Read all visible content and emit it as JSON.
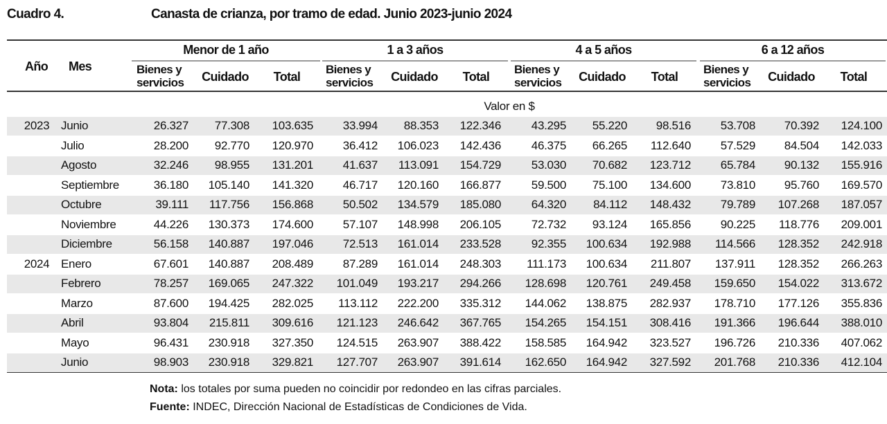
{
  "header": {
    "label": "Cuadro 4.",
    "title": "Canasta de crianza, por tramo de edad. Junio 2023-junio 2024"
  },
  "table": {
    "col_year": "Año",
    "col_month": "Mes",
    "groups": [
      "Menor de 1 año",
      "1 a 3 años",
      "4 a 5 años",
      "6 a 12 años"
    ],
    "subcolumns": [
      "Bienes y servicios",
      "Cuidado",
      "Total"
    ],
    "unit": "Valor en $",
    "rows": [
      {
        "year": "2023",
        "month": "Junio",
        "values": [
          "26.327",
          "77.308",
          "103.635",
          "33.994",
          "88.353",
          "122.346",
          "43.295",
          "55.220",
          "98.516",
          "53.708",
          "70.392",
          "124.100"
        ]
      },
      {
        "month": "Julio",
        "values": [
          "28.200",
          "92.770",
          "120.970",
          "36.412",
          "106.023",
          "142.436",
          "46.375",
          "66.265",
          "112.640",
          "57.529",
          "84.504",
          "142.033"
        ]
      },
      {
        "month": "Agosto",
        "values": [
          "32.246",
          "98.955",
          "131.201",
          "41.637",
          "113.091",
          "154.729",
          "53.030",
          "70.682",
          "123.712",
          "65.784",
          "90.132",
          "155.916"
        ]
      },
      {
        "month": "Septiembre",
        "values": [
          "36.180",
          "105.140",
          "141.320",
          "46.717",
          "120.160",
          "166.877",
          "59.500",
          "75.100",
          "134.600",
          "73.810",
          "95.760",
          "169.570"
        ]
      },
      {
        "month": "Octubre",
        "values": [
          "39.111",
          "117.756",
          "156.868",
          "50.502",
          "134.579",
          "185.080",
          "64.320",
          "84.112",
          "148.432",
          "79.789",
          "107.268",
          "187.057"
        ]
      },
      {
        "month": "Noviembre",
        "values": [
          "44.226",
          "130.373",
          "174.600",
          "57.107",
          "148.998",
          "206.105",
          "72.732",
          "93.124",
          "165.856",
          "90.225",
          "118.776",
          "209.001"
        ]
      },
      {
        "month": "Diciembre",
        "values": [
          "56.158",
          "140.887",
          "197.046",
          "72.513",
          "161.014",
          "233.528",
          "92.355",
          "100.634",
          "192.988",
          "114.566",
          "128.352",
          "242.918"
        ]
      },
      {
        "year": "2024",
        "month": "Enero",
        "values": [
          "67.601",
          "140.887",
          "208.489",
          "87.289",
          "161.014",
          "248.303",
          "111.173",
          "100.634",
          "211.807",
          "137.911",
          "128.352",
          "266.263"
        ]
      },
      {
        "month": "Febrero",
        "values": [
          "78.257",
          "169.065",
          "247.322",
          "101.049",
          "193.217",
          "294.266",
          "128.698",
          "120.761",
          "249.458",
          "159.650",
          "154.022",
          "313.672"
        ]
      },
      {
        "month": "Marzo",
        "values": [
          "87.600",
          "194.425",
          "282.025",
          "113.112",
          "222.200",
          "335.312",
          "144.062",
          "138.875",
          "282.937",
          "178.710",
          "177.126",
          "355.836"
        ]
      },
      {
        "month": "Abril",
        "values": [
          "93.804",
          "215.811",
          "309.616",
          "121.123",
          "246.642",
          "367.765",
          "154.265",
          "154.151",
          "308.416",
          "191.366",
          "196.644",
          "388.010"
        ]
      },
      {
        "month": "Mayo",
        "values": [
          "96.431",
          "230.918",
          "327.350",
          "124.515",
          "263.907",
          "388.422",
          "158.585",
          "164.942",
          "323.527",
          "196.726",
          "210.336",
          "407.062"
        ]
      },
      {
        "month": "Junio",
        "values": [
          "98.903",
          "230.918",
          "329.821",
          "127.707",
          "263.907",
          "391.614",
          "162.650",
          "164.942",
          "327.592",
          "201.768",
          "210.336",
          "412.104"
        ]
      }
    ]
  },
  "notes": [
    {
      "label": "Nota:",
      "text": "los totales por suma pueden no coincidir por redondeo en las cifras parciales."
    },
    {
      "label": "Fuente:",
      "text": "INDEC, Dirección Nacional de Estadísticas de Condiciones de Vida."
    }
  ]
}
